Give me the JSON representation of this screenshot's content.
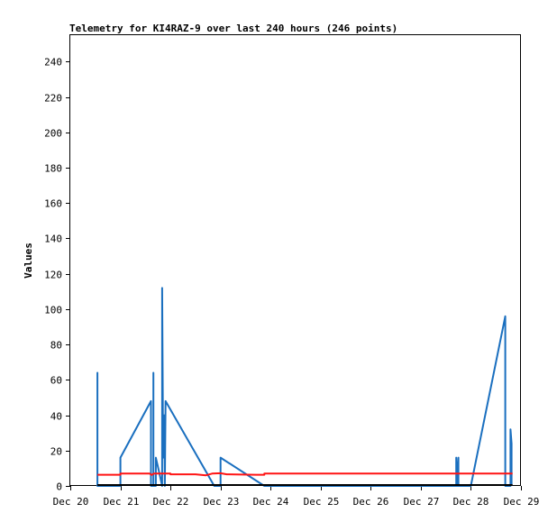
{
  "chart_data": {
    "type": "line",
    "title": "Telemetry for KI4RAZ-9 over last 240 hours (246 points)",
    "ylabel": "Values",
    "xlabel": "",
    "x_range": [
      "2023-12-20T00:00",
      "2023-12-29T00:00"
    ],
    "ylim": [
      0,
      255
    ],
    "x_ticks": [
      {
        "label": "Dec 20",
        "t": "2023-12-20T00:00"
      },
      {
        "label": "Dec 21",
        "t": "2023-12-21T00:00"
      },
      {
        "label": "Dec 22",
        "t": "2023-12-22T00:00"
      },
      {
        "label": "Dec 23",
        "t": "2023-12-23T00:00"
      },
      {
        "label": "Dec 24",
        "t": "2023-12-24T00:00"
      },
      {
        "label": "Dec 25",
        "t": "2023-12-25T00:00"
      },
      {
        "label": "Dec 26",
        "t": "2023-12-26T00:00"
      },
      {
        "label": "Dec 27",
        "t": "2023-12-27T00:00"
      },
      {
        "label": "Dec 28",
        "t": "2023-12-28T00:00"
      },
      {
        "label": "Dec 29",
        "t": "2023-12-29T00:00"
      }
    ],
    "y_ticks": [
      0,
      20,
      40,
      60,
      80,
      100,
      120,
      140,
      160,
      180,
      200,
      220,
      240
    ],
    "grid": false,
    "series": [
      {
        "color": "#1a6fbf",
        "points": [
          [
            "2023-12-20T13:00",
            0
          ],
          [
            "2023-12-20T13:00",
            64
          ],
          [
            "2023-12-20T13:00",
            0
          ],
          [
            "2023-12-21T00:00",
            0
          ],
          [
            "2023-12-21T00:00",
            16
          ],
          [
            "2023-12-21T14:40",
            48
          ],
          [
            "2023-12-21T14:40",
            0
          ],
          [
            "2023-12-21T15:50",
            0
          ],
          [
            "2023-12-21T15:50",
            64
          ],
          [
            "2023-12-21T15:50",
            0
          ],
          [
            "2023-12-21T17:00",
            0
          ],
          [
            "2023-12-21T17:00",
            16
          ],
          [
            "2023-12-21T18:10",
            10
          ],
          [
            "2023-12-21T20:00",
            0
          ],
          [
            "2023-12-21T20:00",
            112
          ],
          [
            "2023-12-21T20:30",
            16
          ],
          [
            "2023-12-21T21:00",
            40
          ],
          [
            "2023-12-21T21:20",
            0
          ],
          [
            "2023-12-21T21:40",
            48
          ],
          [
            "2023-12-22T21:00",
            0
          ],
          [
            "2023-12-23T00:00",
            0
          ],
          [
            "2023-12-23T00:00",
            16
          ],
          [
            "2023-12-23T21:00",
            0
          ],
          [
            "2023-12-27T17:00",
            0
          ],
          [
            "2023-12-27T17:00",
            16
          ],
          [
            "2023-12-27T17:30",
            0
          ],
          [
            "2023-12-27T18:00",
            16
          ],
          [
            "2023-12-27T18:00",
            0
          ],
          [
            "2023-12-28T00:00",
            0
          ],
          [
            "2023-12-28T16:30",
            96
          ],
          [
            "2023-12-28T16:30",
            0
          ],
          [
            "2023-12-28T19:00",
            0
          ],
          [
            "2023-12-28T19:00",
            32
          ],
          [
            "2023-12-28T19:30",
            24
          ],
          [
            "2023-12-28T19:30",
            0
          ]
        ]
      },
      {
        "color": "#ff1414",
        "points": [
          [
            "2023-12-20T13:00",
            6.3
          ],
          [
            "2023-12-21T00:00",
            6.3
          ],
          [
            "2023-12-21T00:00",
            7.0
          ],
          [
            "2023-12-21T14:00",
            7.0
          ],
          [
            "2023-12-21T15:00",
            6.2
          ],
          [
            "2023-12-21T16:00",
            7.0
          ],
          [
            "2023-12-22T00:00",
            7.0
          ],
          [
            "2023-12-22T00:00",
            6.6
          ],
          [
            "2023-12-22T12:00",
            6.6
          ],
          [
            "2023-12-22T17:00",
            6.0
          ],
          [
            "2023-12-22T20:00",
            7.0
          ],
          [
            "2023-12-23T00:00",
            7.2
          ],
          [
            "2023-12-23T03:00",
            6.6
          ],
          [
            "2023-12-23T17:00",
            6.3
          ],
          [
            "2023-12-23T21:00",
            6.3
          ],
          [
            "2023-12-23T21:00",
            7.0
          ],
          [
            "2023-12-28T20:00",
            7.0
          ]
        ]
      },
      {
        "color": "#000000",
        "points": [
          [
            "2023-12-20T13:00",
            0.5
          ],
          [
            "2023-12-28T20:00",
            0.5
          ]
        ]
      }
    ]
  }
}
